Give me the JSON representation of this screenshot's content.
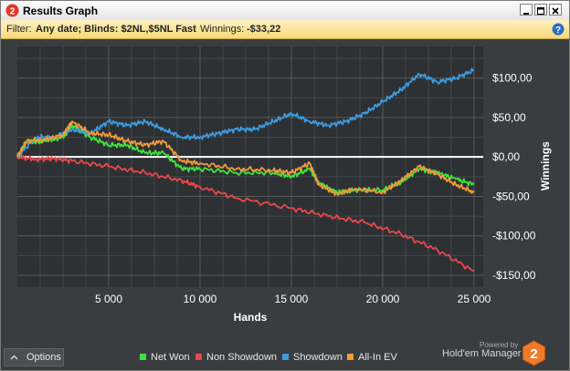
{
  "window": {
    "title": "Results Graph",
    "app_icon": "hem-2-logo-icon",
    "controls": [
      "minimize-icon",
      "maximize-icon",
      "close-icon"
    ]
  },
  "filter": {
    "prefix": "Filter:",
    "text": "Any date; Blinds: $2NL,$5NL Fast",
    "winnings_label": "Winnings:",
    "winnings_value": "-$33,22",
    "help_icon": "help-icon"
  },
  "colors": {
    "net_won": "#3fe33f",
    "non_showdown": "#e8474b",
    "showdown": "#3d9be0",
    "all_in_ev": "#f2993a",
    "zero_line": "#ffffff",
    "accent_logo": "#f07a2a"
  },
  "chart_data": {
    "type": "line",
    "xlabel": "Hands",
    "ylabel": "Winnings",
    "xlim": [
      0,
      25500
    ],
    "ylim": [
      -165,
      140
    ],
    "x_ticks": [
      5000,
      10000,
      15000,
      20000,
      25000
    ],
    "x_tick_labels": [
      "5 000",
      "10 000",
      "15 000",
      "20 000",
      "25 000"
    ],
    "y_ticks": [
      100,
      50,
      0,
      -50,
      -100,
      -150
    ],
    "y_tick_labels": [
      "$100,00",
      "$50,00",
      "$0,00",
      "-$50,00",
      "-$100,00",
      "-$150,00"
    ],
    "grid": true,
    "legend_position": "bottom",
    "series": [
      {
        "name": "Net Won",
        "color_key": "net_won",
        "x": [
          0,
          500,
          1500,
          2500,
          3000,
          4000,
          5000,
          6000,
          7000,
          8000,
          9000,
          10000,
          12000,
          14000,
          15000,
          16000,
          16500,
          17500,
          18500,
          20000,
          21000,
          22000,
          23000,
          24000,
          25000
        ],
        "y": [
          0,
          18,
          20,
          25,
          40,
          25,
          15,
          15,
          5,
          5,
          -15,
          -15,
          -20,
          -20,
          -25,
          -15,
          -33,
          -45,
          -42,
          -42,
          -32,
          -15,
          -20,
          -28,
          -35
        ]
      },
      {
        "name": "Non Showdown",
        "color_key": "non_showdown",
        "x": [
          0,
          1000,
          2000,
          3000,
          5000,
          7000,
          9000,
          10000,
          12000,
          15000,
          17000,
          19000,
          21000,
          23000,
          25000
        ],
        "y": [
          0,
          -3,
          -2,
          -5,
          -12,
          -20,
          -30,
          -38,
          -52,
          -65,
          -75,
          -83,
          -98,
          -118,
          -145
        ]
      },
      {
        "name": "Showdown",
        "color_key": "showdown",
        "x": [
          0,
          1000,
          2000,
          3000,
          4000,
          5000,
          6000,
          7000,
          8000,
          9000,
          10000,
          11000,
          12000,
          13000,
          14000,
          15000,
          16000,
          17000,
          18000,
          19000,
          20000,
          21000,
          22000,
          23000,
          24000,
          25000
        ],
        "y": [
          0,
          25,
          25,
          35,
          30,
          45,
          40,
          45,
          35,
          25,
          25,
          30,
          35,
          35,
          45,
          55,
          45,
          40,
          45,
          55,
          70,
          85,
          105,
          95,
          100,
          110
        ]
      },
      {
        "name": "All-In EV",
        "color_key": "all_in_ev",
        "x": [
          0,
          500,
          1500,
          2500,
          3000,
          4000,
          5000,
          6000,
          7000,
          8000,
          9000,
          10000,
          12000,
          14000,
          15000,
          16000,
          16500,
          17500,
          18500,
          20000,
          21000,
          22000,
          23000,
          24000,
          25000
        ],
        "y": [
          0,
          20,
          22,
          28,
          45,
          30,
          28,
          20,
          15,
          20,
          -5,
          -8,
          -15,
          -17,
          -20,
          -8,
          -35,
          -47,
          -40,
          -45,
          -30,
          -12,
          -22,
          -35,
          -45
        ]
      }
    ]
  },
  "footer": {
    "options_icon": "chevron-up-icon",
    "options_label": "Options",
    "legend": [
      {
        "label": "Net Won",
        "color_key": "net_won"
      },
      {
        "label": "Non Showdown",
        "color_key": "non_showdown"
      },
      {
        "label": "Showdown",
        "color_key": "showdown"
      },
      {
        "label": "All-In EV",
        "color_key": "all_in_ev"
      }
    ],
    "powered_by": "Powered by",
    "brand": "Hold'em Manager",
    "brand_logo": "hem-2-logo-icon",
    "brand_logo_text": "2"
  }
}
